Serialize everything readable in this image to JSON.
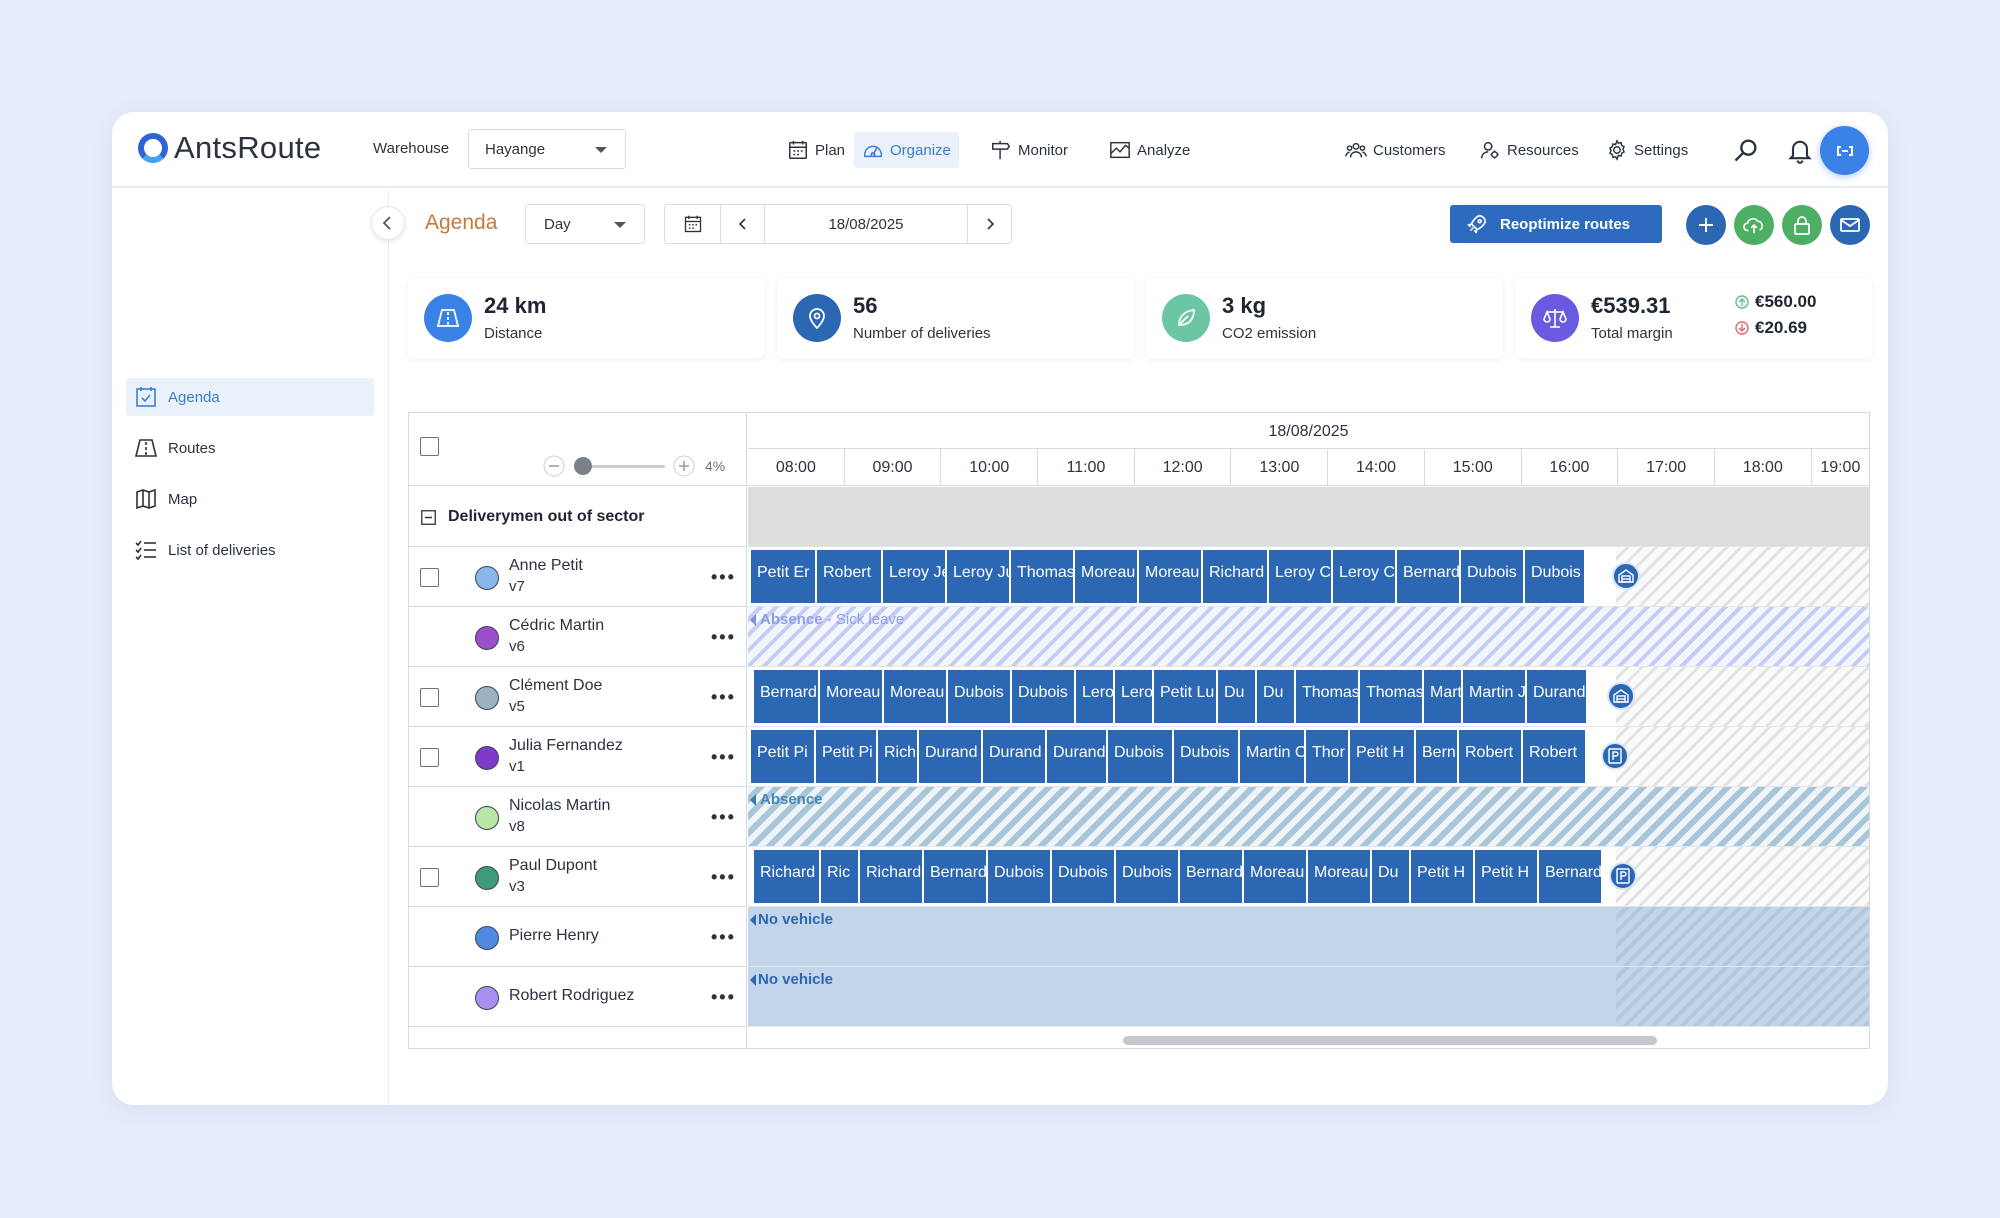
{
  "app": {
    "logo_text": "AntsRoute"
  },
  "header": {
    "warehouse_label": "Warehouse",
    "warehouse_value": "Hayange",
    "nav": [
      {
        "label": "Plan",
        "icon": "calendar-icon"
      },
      {
        "label": "Organize",
        "icon": "dashboard-icon"
      },
      {
        "label": "Monitor",
        "icon": "signpost-icon"
      },
      {
        "label": "Analyze",
        "icon": "chart-icon"
      }
    ],
    "nav_right": [
      {
        "label": "Customers",
        "icon": "customers-icon"
      },
      {
        "label": "Resources",
        "icon": "resources-icon"
      },
      {
        "label": "Settings",
        "icon": "gear-icon"
      }
    ]
  },
  "sidebar": {
    "items": [
      {
        "label": "Agenda",
        "icon": "agenda-icon"
      },
      {
        "label": "Routes",
        "icon": "routes-icon"
      },
      {
        "label": "Map",
        "icon": "map-icon"
      },
      {
        "label": "List of deliveries",
        "icon": "list-icon"
      }
    ]
  },
  "toolbar": {
    "title": "Agenda",
    "view": "Day",
    "date": "18/08/2025",
    "reoptimize_label": "Reoptimize routes"
  },
  "kpis": {
    "distance": {
      "value": "24 km",
      "label": "Distance",
      "color": "#3b82e6"
    },
    "deliveries": {
      "value": "56",
      "label": "Number of deliveries",
      "color": "#2c67b3"
    },
    "co2": {
      "value": "3 kg",
      "label": "CO2 emission",
      "color": "#6cc6a3"
    },
    "margin": {
      "value": "€539.31",
      "label": "Total margin",
      "up": "€560.00",
      "down": "€20.69",
      "color": "#6a5ae0"
    }
  },
  "agenda": {
    "date": "18/08/2025",
    "zoom": "4%",
    "hours": [
      "08:00",
      "09:00",
      "10:00",
      "11:00",
      "12:00",
      "13:00",
      "14:00",
      "15:00",
      "16:00",
      "17:00",
      "18:00",
      "19:00"
    ],
    "section_label": "Deliverymen out of sector",
    "people": [
      {
        "name": "Anne Petit",
        "vehicle": "v7",
        "color": "#8ab7ea"
      },
      {
        "name": "Cédric Martin",
        "vehicle": "v6",
        "color": "#9b4fc9"
      },
      {
        "name": "Clément Doe",
        "vehicle": "v5",
        "color": "#9bb3c1"
      },
      {
        "name": "Julia Fernandez",
        "vehicle": "v1",
        "color": "#7e3bc9"
      },
      {
        "name": "Nicolas Martin",
        "vehicle": "v8",
        "color": "#b8e6a6"
      },
      {
        "name": "Paul Dupont",
        "vehicle": "v3",
        "color": "#3f9a7a"
      },
      {
        "name": "Pierre Henry",
        "vehicle": "",
        "color": "#4f8ae0"
      },
      {
        "name": "Robert Rodriguez",
        "vehicle": "",
        "color": "#a98ff0"
      }
    ],
    "lanes": {
      "anne": [
        "Petit Er",
        "Robert",
        "Leroy Je",
        "Leroy Ju",
        "Thomas",
        "Moreau",
        "Moreau",
        "Richard",
        "Leroy C",
        "Leroy C",
        "Bernard",
        "Dubois",
        "Dubois"
      ],
      "cedric_label": "Absence",
      "cedric_sub": " - Sick leave",
      "clement": [
        "Bernard",
        "Moreau",
        "Moreau",
        "Dubois",
        "Dubois",
        "Lero",
        "Lero",
        "Petit Lu",
        "Du",
        "Du",
        "Thomas",
        "Thomas",
        "Mart",
        "Martin J",
        "Durand"
      ],
      "julia": [
        "Petit Pi",
        "Petit Pi",
        "Rich",
        "Durand",
        "Durand",
        "Durand",
        "Dubois",
        "Dubois",
        "Martin C",
        "Thor",
        "Petit H",
        "Bern",
        "Robert",
        "Robert"
      ],
      "nicolas_label": "Absence",
      "paul": [
        "Richard",
        "Ric",
        "Richard",
        "Bernard",
        "Dubois",
        "Dubois",
        "Dubois",
        "Bernard",
        "Moreau",
        "Moreau",
        "Du",
        "Petit H",
        "Petit H",
        "Bernard"
      ],
      "no_vehicle": "No vehicle"
    }
  }
}
